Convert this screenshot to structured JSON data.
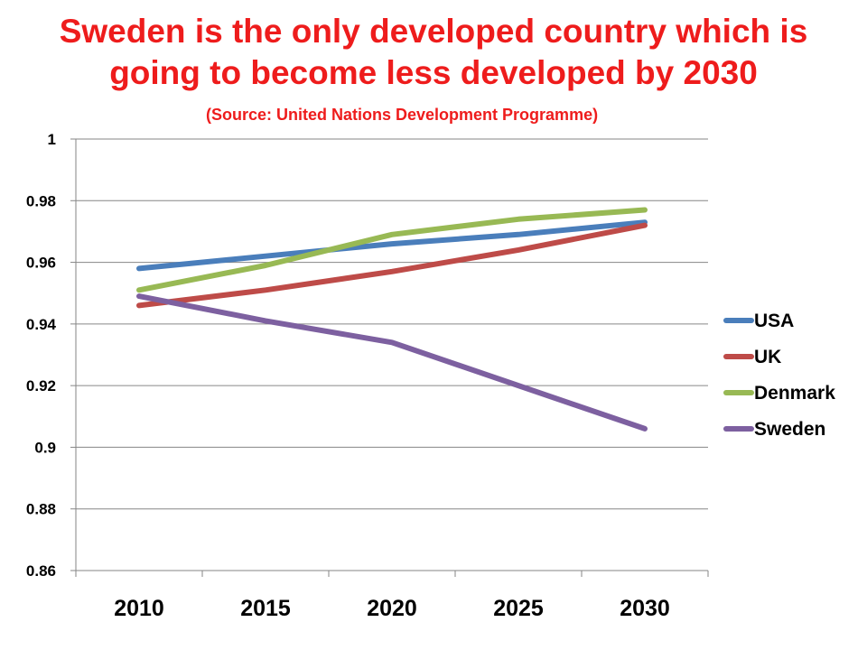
{
  "chart_data": {
    "type": "line",
    "title_line1": "Sweden is the only developed country which is",
    "title_line2": "going to become less developed by 2030",
    "subtitle": "(Source: United Nations Development Programme)",
    "xlabel": "",
    "ylabel": "",
    "categories": [
      "2010",
      "2015",
      "2020",
      "2025",
      "2030"
    ],
    "ylim": [
      0.86,
      1
    ],
    "yticks": [
      "0.86",
      "0.88",
      "0.9",
      "0.92",
      "0.94",
      "0.96",
      "0.98",
      "1"
    ],
    "grid": true,
    "legend_position": "right",
    "series": [
      {
        "name": "USA",
        "color": "#4a7ebb",
        "values": [
          0.958,
          0.962,
          0.966,
          0.969,
          0.973
        ]
      },
      {
        "name": "UK",
        "color": "#be4b48",
        "values": [
          0.946,
          0.951,
          0.957,
          0.964,
          0.972
        ]
      },
      {
        "name": "Denmark",
        "color": "#98b954",
        "values": [
          0.951,
          0.959,
          0.969,
          0.974,
          0.977
        ]
      },
      {
        "name": "Sweden",
        "color": "#7d60a0",
        "values": [
          0.949,
          0.941,
          0.934,
          0.92,
          0.906
        ]
      }
    ]
  }
}
